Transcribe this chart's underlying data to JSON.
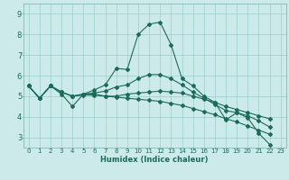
{
  "xlabel": "Humidex (Indice chaleur)",
  "bg_color": "#cceaea",
  "grid_color": "#99cccc",
  "line_color": "#1a6b5a",
  "spine_color": "#7ab0b0",
  "xlim": [
    -0.5,
    23.5
  ],
  "ylim": [
    2.5,
    9.5
  ],
  "xticks": [
    0,
    1,
    2,
    3,
    4,
    5,
    6,
    7,
    8,
    9,
    10,
    11,
    12,
    13,
    14,
    15,
    16,
    17,
    18,
    19,
    20,
    21,
    22,
    23
  ],
  "yticks": [
    3,
    4,
    5,
    6,
    7,
    8,
    9
  ],
  "lines": [
    {
      "x": [
        0,
        1,
        2,
        3,
        4,
        5,
        6,
        7,
        8,
        9,
        10,
        11,
        12,
        13,
        14,
        15,
        16,
        17,
        18,
        19,
        20,
        21,
        22
      ],
      "y": [
        5.5,
        4.9,
        5.5,
        5.1,
        4.5,
        5.1,
        5.3,
        5.55,
        6.35,
        6.3,
        8.0,
        8.5,
        8.6,
        7.5,
        5.85,
        5.5,
        5.0,
        4.7,
        3.85,
        4.2,
        3.95,
        3.2,
        2.65
      ]
    },
    {
      "x": [
        0,
        1,
        2,
        3,
        4,
        5,
        6,
        7,
        8,
        9,
        10,
        11,
        12,
        13,
        14,
        15,
        16,
        17,
        18,
        19,
        20,
        21,
        22
      ],
      "y": [
        5.5,
        4.9,
        5.5,
        5.2,
        5.0,
        5.1,
        5.1,
        5.0,
        5.0,
        5.1,
        5.15,
        5.2,
        5.25,
        5.2,
        5.15,
        5.0,
        4.85,
        4.7,
        4.5,
        4.35,
        4.2,
        4.05,
        3.9
      ]
    },
    {
      "x": [
        0,
        1,
        2,
        3,
        4,
        5,
        6,
        7,
        8,
        9,
        10,
        11,
        12,
        13,
        14,
        15,
        16,
        17,
        18,
        19,
        20,
        21,
        22
      ],
      "y": [
        5.5,
        4.9,
        5.5,
        5.2,
        5.0,
        5.1,
        5.15,
        5.25,
        5.45,
        5.55,
        5.85,
        6.05,
        6.05,
        5.85,
        5.55,
        5.2,
        4.9,
        4.6,
        4.3,
        4.2,
        4.05,
        3.8,
        3.5
      ]
    },
    {
      "x": [
        0,
        1,
        2,
        3,
        4,
        5,
        6,
        7,
        8,
        9,
        10,
        11,
        12,
        13,
        14,
        15,
        16,
        17,
        18,
        19,
        20,
        21,
        22
      ],
      "y": [
        5.5,
        4.9,
        5.5,
        5.2,
        5.0,
        5.05,
        5.05,
        5.0,
        4.95,
        4.9,
        4.85,
        4.8,
        4.75,
        4.65,
        4.55,
        4.4,
        4.25,
        4.1,
        3.9,
        3.75,
        3.55,
        3.35,
        3.15
      ]
    }
  ]
}
